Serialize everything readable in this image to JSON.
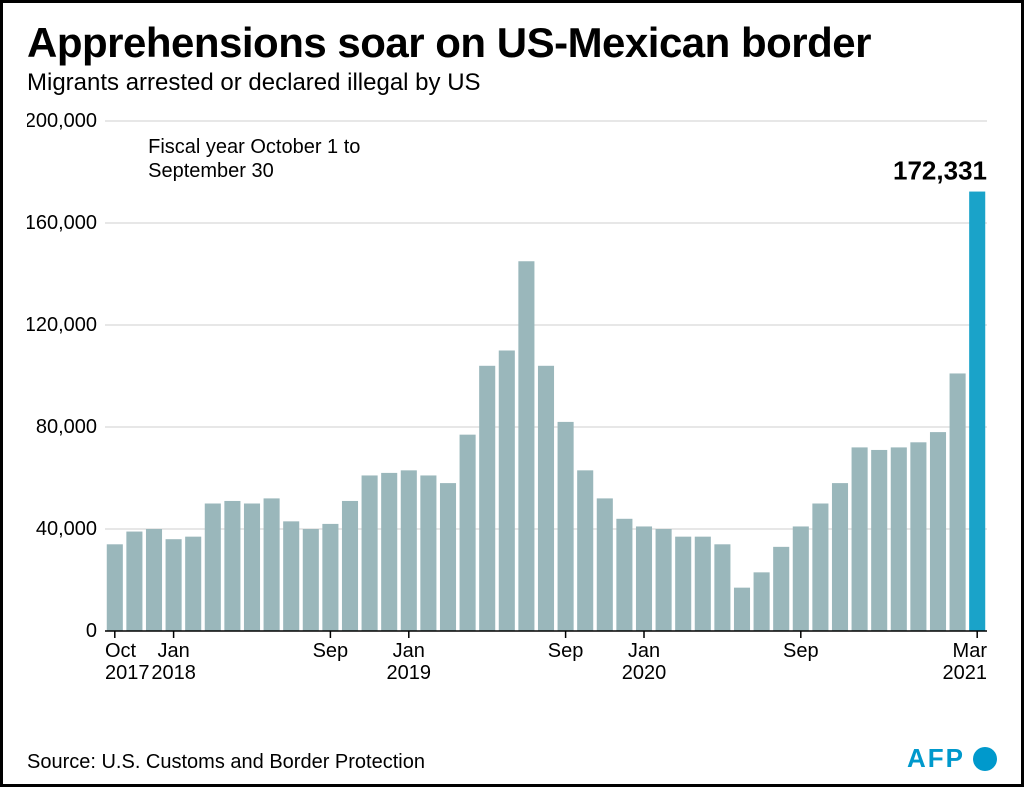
{
  "title": "Apprehensions soar on US-Mexican border",
  "subtitle": "Migrants arrested or declared illegal by US",
  "note_line1": "Fiscal year October 1 to",
  "note_line2": "September 30",
  "highlight_label": "172,331",
  "source": "Source: U.S. Customs and Border Protection",
  "logo_text": "AFP",
  "chart": {
    "type": "bar",
    "values": [
      34000,
      39000,
      40000,
      36000,
      37000,
      50000,
      51000,
      50000,
      52000,
      43000,
      40000,
      42000,
      51000,
      61000,
      62000,
      63000,
      61000,
      58000,
      77000,
      104000,
      110000,
      145000,
      104000,
      82000,
      63000,
      52000,
      44000,
      41000,
      40000,
      37000,
      37000,
      34000,
      17000,
      23000,
      33000,
      41000,
      50000,
      58000,
      72000,
      71000,
      72000,
      74000,
      78000,
      101000,
      172331
    ],
    "highlight_index": 44,
    "bar_color": "#9ab7bb",
    "highlight_color": "#1aa3c9",
    "grid_color": "#cfcfcf",
    "axis_color": "#000000",
    "background": "#ffffff",
    "ylim": [
      0,
      200000
    ],
    "ytick_step": 40000,
    "yticks": [
      "0",
      "40,000",
      "80,000",
      "120,000",
      "160,000",
      "200,000"
    ],
    "xticks": [
      {
        "index": 0,
        "line1": "Oct",
        "line2": "2017"
      },
      {
        "index": 3,
        "line1": "Jan",
        "line2": "2018"
      },
      {
        "index": 11,
        "line1": "Sep",
        "line2": ""
      },
      {
        "index": 15,
        "line1": "Jan",
        "line2": "2019"
      },
      {
        "index": 23,
        "line1": "Sep",
        "line2": ""
      },
      {
        "index": 27,
        "line1": "Jan",
        "line2": "2020"
      },
      {
        "index": 35,
        "line1": "Sep",
        "line2": ""
      },
      {
        "index": 44,
        "line1": "Mar",
        "line2": "2021"
      }
    ],
    "title_fontsize": 42,
    "subtitle_fontsize": 24,
    "axis_fontsize": 20,
    "note_fontsize": 20,
    "highlight_fontsize": 26,
    "source_fontsize": 20,
    "logo_fontsize": 26,
    "bar_gap_ratio": 0.18
  }
}
